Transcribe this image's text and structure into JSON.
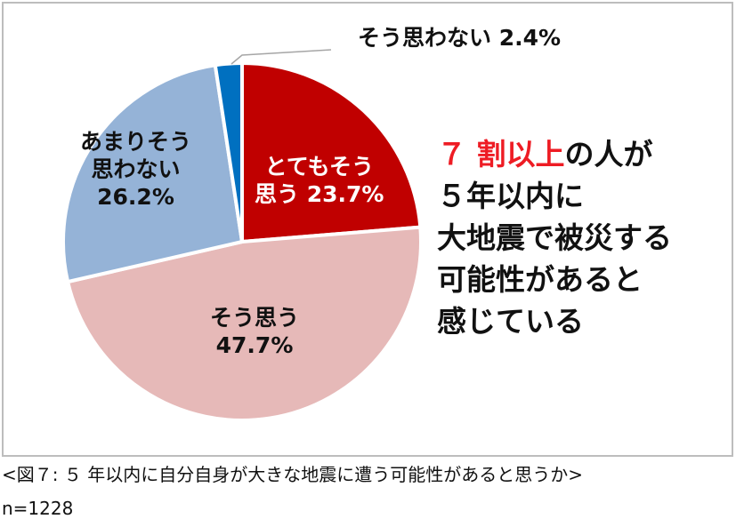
{
  "chart_data": {
    "type": "pie",
    "start_angle_deg": 0,
    "direction": "clockwise",
    "slices": [
      {
        "name": "とてもそう思う",
        "value": 23.7,
        "label_lines": [
          "とてもそう",
          "思う 23.7%"
        ],
        "color": "#c00000",
        "label_color": "#ffffff"
      },
      {
        "name": "そう思う",
        "value": 47.7,
        "label_lines": [
          "そう思う",
          "47.7%"
        ],
        "color": "#e6b9b8",
        "label_color": "#111111"
      },
      {
        "name": "あまりそう思わない",
        "value": 26.2,
        "label_lines": [
          "あまりそう",
          "思わない",
          "26.2%"
        ],
        "color": "#95b3d7",
        "label_color": "#111111"
      },
      {
        "name": "そう思わない",
        "value": 2.4,
        "label_lines": [
          "そう思わない 2.4%"
        ],
        "color": "#0070c0",
        "label_color": "#111111"
      }
    ]
  },
  "headline": {
    "line1_red": "７ 割以上",
    "line1_rest": "の人が",
    "line2": "５年以内に",
    "line3": "大地震で被災する",
    "line4": "可能性があると",
    "line5": "感じている"
  },
  "caption": "<図７: ５ 年以内に自分自身が大きな地震に遭う可能性があると思うか>",
  "sample_size": "n=1228",
  "colors": {
    "accent_red": "#ee1c24",
    "border": "#bdbdbd"
  }
}
